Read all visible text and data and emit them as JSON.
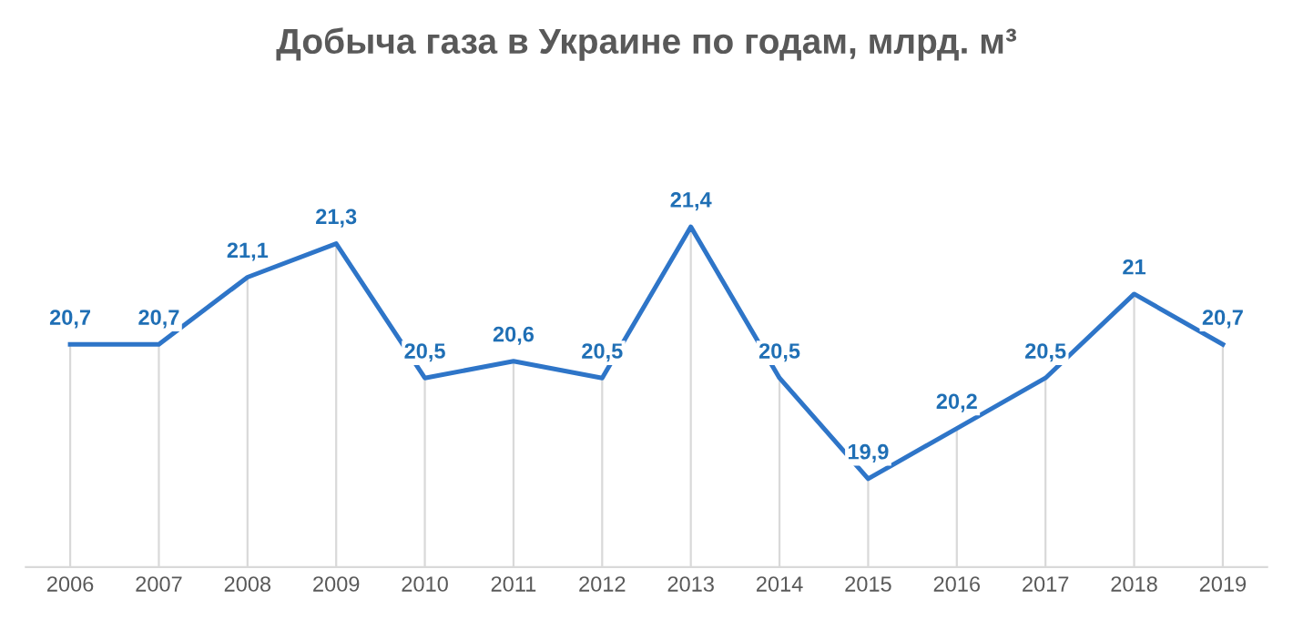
{
  "chart_data": {
    "type": "line",
    "title": "Добыча газа в Украине по годам, млрд. м³",
    "categories": [
      "2006",
      "2007",
      "2008",
      "2009",
      "2010",
      "2011",
      "2012",
      "2013",
      "2014",
      "2015",
      "2016",
      "2017",
      "2018",
      "2019"
    ],
    "series": [
      {
        "color": "#2e75c8",
        "values": [
          20.7,
          20.7,
          21.1,
          21.3,
          20.5,
          20.6,
          20.5,
          21.4,
          20.5,
          19.9,
          20.2,
          20.5,
          21,
          20.7
        ],
        "value_labels": [
          "20,7",
          "20,7",
          "21,1",
          "21,3",
          "20,5",
          "20,6",
          "20,5",
          "21,4",
          "20,5",
          "19,9",
          "20,2",
          "20,5",
          "21",
          "20,7"
        ]
      }
    ],
    "tick_labels": "x",
    "grid": "x",
    "marker": "none",
    "line_style": "solid"
  }
}
